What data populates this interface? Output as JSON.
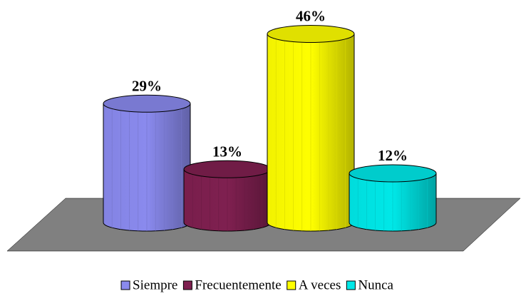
{
  "chart_data": {
    "type": "bar",
    "categories": [
      "Siempre",
      "Frecuentemente",
      "A veces",
      "Nunca"
    ],
    "values": [
      29,
      13,
      46,
      12
    ],
    "value_labels": [
      "29%",
      "13%",
      "46%",
      "12%"
    ],
    "colors": [
      "#8a8aee",
      "#7f2050",
      "#ffff00",
      "#00e8e8"
    ]
  }
}
